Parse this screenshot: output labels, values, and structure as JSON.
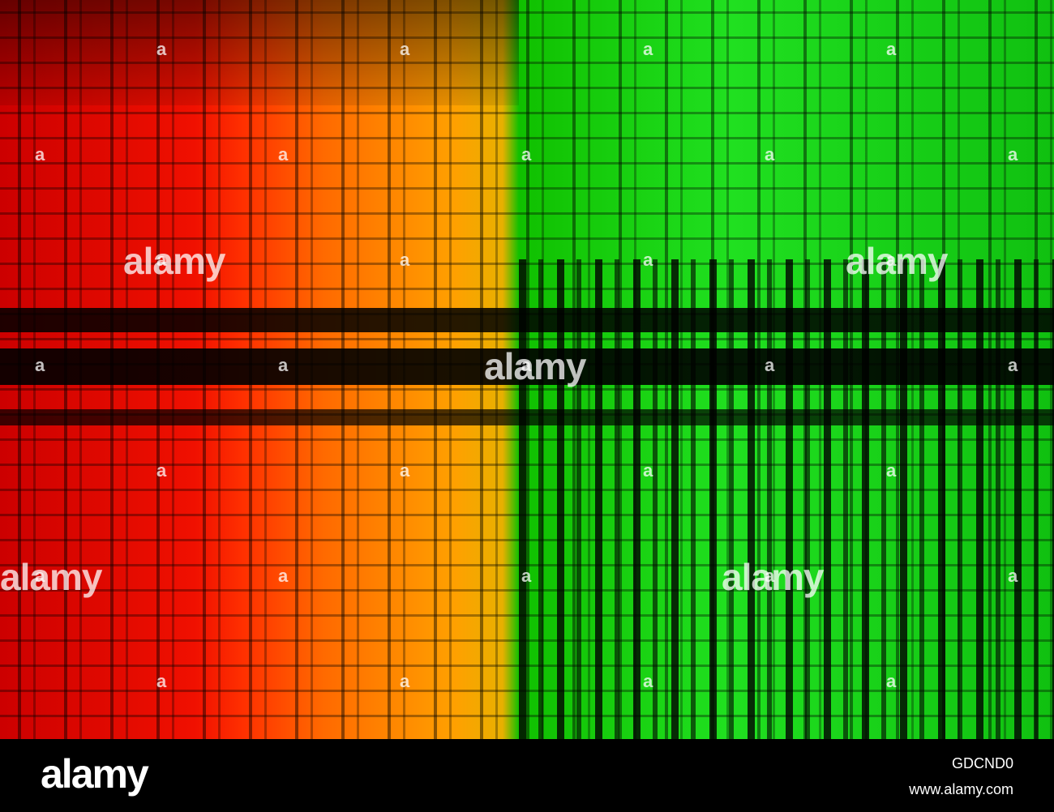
{
  "watermark": "alamy",
  "watermark_small": "a",
  "footer": {
    "logo": "alamy",
    "image_id": "GDCND0",
    "url": "www.alamy.com"
  }
}
